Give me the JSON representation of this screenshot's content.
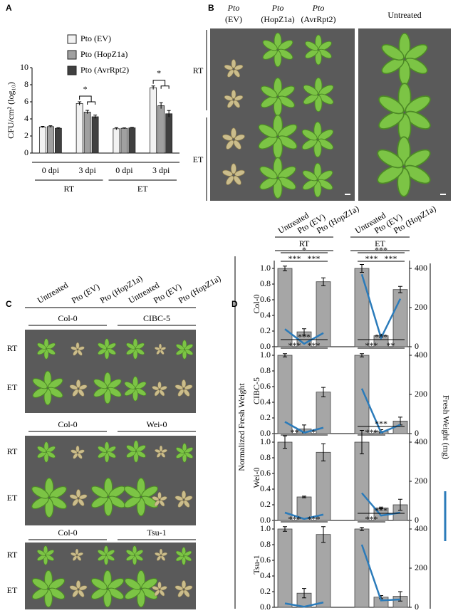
{
  "panel_labels": [
    "A",
    "B",
    "C",
    "D"
  ],
  "chart_data": [
    {
      "type": "bar",
      "ylabel": "CFU/cm² (log₁₀)",
      "categories": [
        "0 dpi",
        "3 dpi",
        "0 dpi",
        "3 dpi"
      ],
      "group_labels": [
        "RT",
        "ET"
      ],
      "series": [
        {
          "name": "Pto (EV)",
          "color": "#f2f2f2",
          "values": [
            3.05,
            5.8,
            2.85,
            7.65
          ],
          "errors": [
            0.08,
            0.2,
            0.12,
            0.2
          ]
        },
        {
          "name": "Pto (HopZ1a)",
          "color": "#a0a0a0",
          "values": [
            3.1,
            4.8,
            2.9,
            5.55
          ],
          "errors": [
            0.1,
            0.2,
            0.05,
            0.35
          ]
        },
        {
          "name": "Pto (AvrRpt2)",
          "color": "#404040",
          "values": [
            2.9,
            4.25,
            2.95,
            4.6
          ],
          "errors": [
            0.07,
            0.2,
            0.05,
            0.38
          ]
        }
      ],
      "ylim": [
        0,
        10
      ],
      "yticks": [
        0,
        2,
        4,
        6,
        8,
        10
      ],
      "annotations": [
        {
          "label": "*",
          "category": 1
        },
        {
          "label": "*",
          "category": 3
        }
      ]
    },
    {
      "type": "combo",
      "ylabel": "Col-0",
      "ylim": [
        0,
        1.1
      ],
      "y2lim": [
        0,
        440
      ],
      "yticks": [
        {
          "value": 0,
          "label": "0.0"
        },
        0.2,
        0.4,
        0.6,
        0.8,
        {
          "value": 1,
          "label": "1.0"
        }
      ],
      "y2ticks": [
        0,
        200,
        400
      ],
      "series": [
        {
          "type": "bar",
          "color": "#a6a6a6",
          "values": [
            1.0,
            0.19,
            0.83,
            1.0,
            0.14,
            0.73
          ],
          "errors": [
            0.03,
            0.04,
            0.05,
            0.05,
            0.02,
            0.04
          ]
        },
        {
          "type": "line",
          "axis": "y2",
          "color": "#2b7bba",
          "values": [
            90,
            15,
            70,
            null,
            null,
            null
          ]
        },
        {
          "type": "line",
          "axis": "y2",
          "color": "#2b7bba",
          "values": [
            null,
            null,
            null,
            370,
            45,
            245
          ]
        }
      ],
      "significance": [
        {
          "label": "*",
          "from": 0,
          "to": 2
        },
        {
          "label": "***",
          "from": 0,
          "to": 1
        },
        {
          "label": "***",
          "from": 1,
          "to": 2
        },
        {
          "label": "***",
          "from": 3,
          "to": 5
        },
        {
          "label": "***",
          "from": 3,
          "to": 4
        },
        {
          "label": "***",
          "from": 4,
          "to": 5
        }
      ]
    },
    {
      "type": "combo",
      "ylabel": "CIBC-5",
      "ylim": [
        0,
        1.1
      ],
      "y2lim": [
        0,
        440
      ],
      "yticks": [
        {
          "value": 0,
          "label": "0.0"
        },
        0.2,
        0.4,
        0.6,
        0.8,
        {
          "value": 1,
          "label": "1.0"
        }
      ],
      "y2ticks": [
        0,
        200,
        400
      ],
      "series": [
        {
          "type": "bar",
          "color": "#a6a6a6",
          "values": [
            1.0,
            0.06,
            0.53,
            1.0,
            0.03,
            0.16
          ],
          "errors": [
            0.02,
            0.05,
            0.06,
            0.02,
            0.02,
            0.05
          ]
        },
        {
          "type": "line",
          "axis": "y2",
          "color": "#2b7bba",
          "values": [
            60,
            5,
            30,
            null,
            null,
            null
          ]
        },
        {
          "type": "line",
          "axis": "y2",
          "color": "#2b7bba",
          "values": [
            null,
            null,
            null,
            230,
            5,
            45
          ]
        }
      ],
      "significance": [
        {
          "label": "***",
          "from": 0,
          "to": 2
        },
        {
          "label": "***",
          "from": 0,
          "to": 1
        },
        {
          "label": "***",
          "from": 1,
          "to": 2
        },
        {
          "label": "***",
          "from": 3,
          "to": 5
        },
        {
          "label": "***",
          "from": 3,
          "to": 4
        },
        {
          "label": "**",
          "from": 4,
          "to": 5
        }
      ]
    },
    {
      "type": "combo",
      "ylabel": "Wei-0",
      "ylim": [
        0,
        1.1
      ],
      "y2lim": [
        0,
        440
      ],
      "yticks": [
        {
          "value": 0,
          "label": "0.0"
        },
        0.2,
        0.4,
        0.6,
        0.8,
        {
          "value": 1,
          "label": "1.0"
        }
      ],
      "y2ticks": [
        0,
        200,
        400
      ],
      "series": [
        {
          "type": "bar",
          "color": "#a6a6a6",
          "values": [
            1.0,
            0.3,
            0.87,
            1.0,
            0.16,
            0.2
          ],
          "errors": [
            0.08,
            0.01,
            0.11,
            0.15,
            0.01,
            0.07
          ]
        },
        {
          "type": "line",
          "axis": "y2",
          "color": "#2b7bba",
          "values": [
            40,
            8,
            30,
            null,
            null,
            null
          ]
        },
        {
          "type": "line",
          "axis": "y2",
          "color": "#2b7bba",
          "values": [
            null,
            null,
            null,
            140,
            25,
            40
          ]
        }
      ],
      "significance": [
        {
          "label": "**",
          "from": 0,
          "to": 1
        },
        {
          "label": "*",
          "from": 1,
          "to": 2
        },
        {
          "label": "***",
          "from": 3,
          "to": 5
        },
        {
          "label": "***",
          "from": 3,
          "to": 4
        }
      ]
    },
    {
      "type": "combo",
      "ylabel": "Tsu-1",
      "ylim": [
        0,
        1.1
      ],
      "y2lim": [
        0,
        440
      ],
      "yticks": [
        {
          "value": 0,
          "label": "0.0"
        },
        0.2,
        0.4,
        0.6,
        0.8,
        {
          "value": 1,
          "label": "1.0"
        }
      ],
      "y2ticks": [
        0,
        200,
        400
      ],
      "series": [
        {
          "type": "bar",
          "color": "#a6a6a6",
          "values": [
            1.0,
            0.18,
            0.93,
            1.0,
            0.13,
            0.14
          ],
          "errors": [
            0.03,
            0.06,
            0.1,
            0.02,
            0.02,
            0.06
          ]
        },
        {
          "type": "line",
          "axis": "y2",
          "color": "#2b7bba",
          "values": [
            20,
            3,
            25,
            null,
            null,
            null
          ]
        },
        {
          "type": "line",
          "axis": "y2",
          "color": "#2b7bba",
          "values": [
            null,
            null,
            null,
            320,
            35,
            40
          ]
        }
      ],
      "significance": [
        {
          "label": "***",
          "from": 0,
          "to": 1
        },
        {
          "label": "***",
          "from": 1,
          "to": 2
        },
        {
          "label": "***",
          "from": 3,
          "to": 5
        },
        {
          "label": "***",
          "from": 3,
          "to": 4
        }
      ]
    }
  ],
  "panel_b": {
    "columns": [
      {
        "strain": "Pto",
        "label": "(EV)"
      },
      {
        "strain": "Pto",
        "label": "(HopZ1a)"
      },
      {
        "strain": "Pto",
        "label": "(AvrRpt2)"
      }
    ],
    "untreated": "Untreated",
    "rows": [
      "RT",
      "ET"
    ]
  },
  "panel_c": {
    "columns": [
      "Untreated",
      "Pto (EV)",
      "Pto (HopZ1a)",
      "Untreated",
      "Pto (EV)",
      "Pto (HopZ1a)"
    ],
    "blocks": [
      {
        "accessions": [
          "Col-0",
          "CIBC-5"
        ],
        "rows": [
          "RT",
          "ET"
        ]
      },
      {
        "accessions": [
          "Col-0",
          "Wei-0"
        ],
        "rows": [
          "RT",
          "ET"
        ]
      },
      {
        "accessions": [
          "Col-0",
          "Tsu-1"
        ],
        "rows": [
          "RT",
          "ET"
        ]
      }
    ]
  },
  "panel_d": {
    "columns": [
      "Untreated",
      "Pto (EV)",
      "Pto (HopZ1a)",
      "Untreated",
      "Pto (EV)",
      "Pto (HopZ1a)"
    ],
    "group_labels": [
      "RT",
      "ET"
    ],
    "ylabel": "Normalized Fresh Weight",
    "y2label": "Fresh Weight (mg)"
  }
}
